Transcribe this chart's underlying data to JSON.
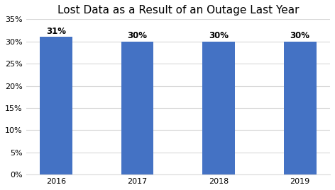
{
  "title": "Lost Data as a Result of an Outage Last Year",
  "categories": [
    "2016",
    "2017",
    "2018",
    "2019"
  ],
  "values": [
    0.31,
    0.3,
    0.3,
    0.3
  ],
  "labels": [
    "31%",
    "30%",
    "30%",
    "30%"
  ],
  "bar_color": "#4472C4",
  "ylim": [
    0,
    0.35
  ],
  "yticks": [
    0.0,
    0.05,
    0.1,
    0.15,
    0.2,
    0.25,
    0.3,
    0.35
  ],
  "ytick_labels": [
    "0%",
    "5%",
    "10%",
    "15%",
    "20%",
    "25%",
    "30%",
    "35%"
  ],
  "title_fontsize": 11,
  "label_fontsize": 8.5,
  "tick_fontsize": 8,
  "background_color": "#ffffff",
  "grid_color": "#d9d9d9",
  "bar_width": 0.4
}
